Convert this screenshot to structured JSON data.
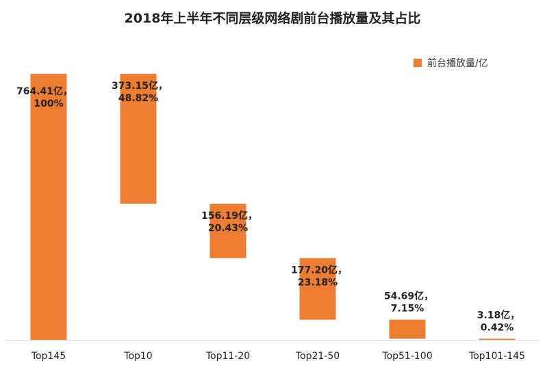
{
  "chart_data": {
    "type": "bar",
    "subtype": "waterfall",
    "title": "2018年上半年不同层级网络剧前台播放量及其占比",
    "legend": {
      "label": "前台播放量/亿",
      "position": "top-right"
    },
    "xlabel": "",
    "ylabel": "",
    "grid": false,
    "bar_color": "#ED7D31",
    "ylim": [
      0,
      764.41
    ],
    "categories": [
      "Top145",
      "Top10",
      "Top11-20",
      "Top21-50",
      "Top51-100",
      "Top101-145"
    ],
    "values": [
      764.41,
      373.15,
      156.19,
      177.2,
      54.69,
      3.18
    ],
    "bar_start": [
      0,
      391.26,
      235.07,
      57.87,
      3.18,
      0
    ],
    "bar_end": [
      764.41,
      764.41,
      391.26,
      235.07,
      57.87,
      3.18
    ],
    "data_labels": [
      [
        "764.41亿，",
        "100%"
      ],
      [
        "373.15亿，",
        "48.82%"
      ],
      [
        "156.19亿，",
        "20.43%"
      ],
      [
        "177.20亿，",
        "23.18%"
      ],
      [
        "54.69亿，",
        "7.15%"
      ],
      [
        "3.18亿，",
        "0.42%"
      ]
    ]
  }
}
